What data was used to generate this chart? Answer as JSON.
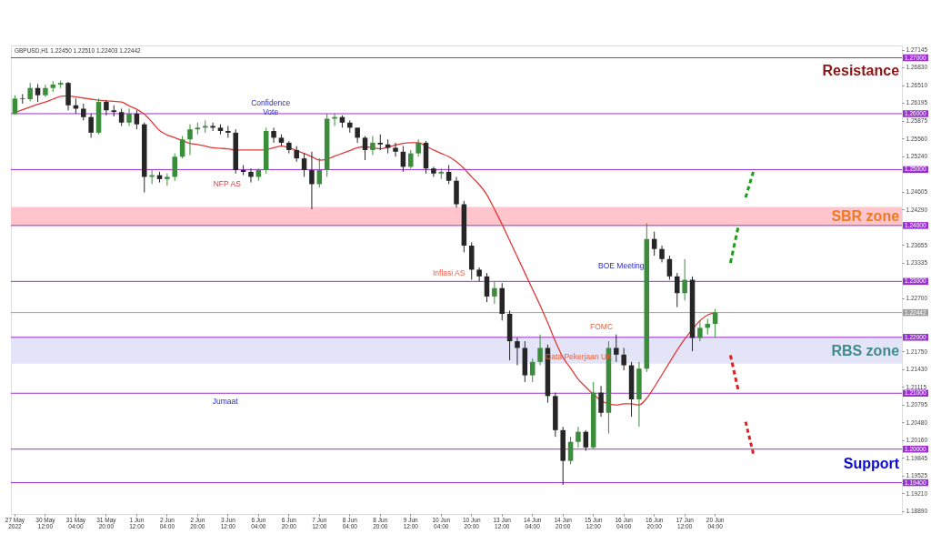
{
  "chart_data": {
    "type": "candlestick",
    "categories": [
      "27 May 2022",
      null,
      null,
      null,
      "30 May 12:00",
      null,
      null,
      null,
      "31 May 04:00",
      null,
      null,
      null,
      "31 May 20:00",
      null,
      null,
      null,
      "1 Jun 12:00",
      null,
      null,
      null,
      "2 Jun 04:00",
      null,
      null,
      null,
      "2 Jun 20:00",
      null,
      null,
      null,
      "3 Jun 12:00",
      null,
      null,
      null,
      "6 Jun 04:00",
      null,
      null,
      null,
      "6 Jun 20:00",
      null,
      null,
      null,
      "7 Jun 12:00",
      null,
      null,
      null,
      "8 Jun 04:00",
      null,
      null,
      null,
      "8 Jun 20:00",
      null,
      null,
      null,
      "9 Jun 12:00",
      null,
      null,
      null,
      "10 Jun 04:00",
      null,
      null,
      null,
      "10 Jun 20:00",
      null,
      null,
      null,
      "13 Jun 12:00",
      null,
      null,
      null,
      "14 Jun 04:00",
      null,
      null,
      null,
      "14 Jun 20:00",
      null,
      null,
      null,
      "15 Jun 12:00",
      null,
      null,
      null,
      "16 Jun 04:00",
      null,
      null,
      null,
      "16 Jun 20:00",
      null,
      null,
      null,
      "17 Jun 12:00",
      null,
      null,
      null,
      "20 Jun 04:00",
      null,
      null,
      null,
      null,
      null,
      null,
      null,
      null,
      null,
      null,
      null,
      null,
      null,
      null,
      null,
      null,
      null,
      null,
      null,
      null,
      null,
      null,
      null,
      null
    ],
    "ohlc": [
      [
        1.26,
        1.2633,
        1.2598,
        1.2627
      ],
      [
        1.2627,
        1.2635,
        1.2618,
        1.2626
      ],
      [
        1.2626,
        1.2655,
        1.2622,
        1.2646
      ],
      [
        1.2646,
        1.2653,
        1.2621,
        1.2633
      ],
      [
        1.2633,
        1.2652,
        1.263,
        1.2646
      ],
      [
        1.2646,
        1.2658,
        1.2639,
        1.2652
      ],
      [
        1.2652,
        1.2659,
        1.2646,
        1.2655
      ],
      [
        1.2655,
        1.2657,
        1.2606,
        1.2615
      ],
      [
        1.2615,
        1.2627,
        1.26,
        1.2609
      ],
      [
        1.2609,
        1.2618,
        1.2588,
        1.2594
      ],
      [
        1.2594,
        1.26,
        1.2557,
        1.2566
      ],
      [
        1.2566,
        1.2627,
        1.2563,
        1.2621
      ],
      [
        1.2621,
        1.2624,
        1.2597,
        1.2606
      ],
      [
        1.2606,
        1.2615,
        1.2595,
        1.2603
      ],
      [
        1.2603,
        1.2609,
        1.2578,
        1.2584
      ],
      [
        1.2584,
        1.2609,
        1.2578,
        1.26
      ],
      [
        1.26,
        1.2606,
        1.2572,
        1.2581
      ],
      [
        1.2581,
        1.2584,
        1.2459,
        1.2487
      ],
      [
        1.2487,
        1.2499,
        1.2474,
        1.249
      ],
      [
        1.249,
        1.2496,
        1.2477,
        1.2483
      ],
      [
        1.2483,
        1.2493,
        1.2471,
        1.2487
      ],
      [
        1.2487,
        1.2529,
        1.248,
        1.2523
      ],
      [
        1.2523,
        1.256,
        1.252,
        1.2554
      ],
      [
        1.2554,
        1.2581,
        1.2526,
        1.2572
      ],
      [
        1.2572,
        1.2584,
        1.2563,
        1.2575
      ],
      [
        1.2575,
        1.2588,
        1.2566,
        1.2578
      ],
      [
        1.2578,
        1.2584,
        1.2569,
        1.2575
      ],
      [
        1.2575,
        1.2581,
        1.2563,
        1.2569
      ],
      [
        1.2569,
        1.2578,
        1.2557,
        1.2566
      ],
      [
        1.2566,
        1.2572,
        1.2493,
        1.2499
      ],
      [
        1.2499,
        1.2508,
        1.249,
        1.2496
      ],
      [
        1.2496,
        1.2502,
        1.2477,
        1.2487
      ],
      [
        1.2487,
        1.2502,
        1.248,
        1.2499
      ],
      [
        1.2499,
        1.2575,
        1.2493,
        1.2569
      ],
      [
        1.2569,
        1.2575,
        1.2548,
        1.2557
      ],
      [
        1.2557,
        1.2563,
        1.2542,
        1.2548
      ],
      [
        1.2548,
        1.2551,
        1.2529,
        1.2535
      ],
      [
        1.2535,
        1.2542,
        1.2514,
        1.252
      ],
      [
        1.252,
        1.2529,
        1.2487,
        1.2499
      ],
      [
        1.2499,
        1.2532,
        1.2429,
        1.2474
      ],
      [
        1.2474,
        1.252,
        1.2468,
        1.2499
      ],
      [
        1.2499,
        1.26,
        1.2487,
        1.2591
      ],
      [
        1.2591,
        1.26,
        1.2578,
        1.2594
      ],
      [
        1.2594,
        1.2597,
        1.2575,
        1.2584
      ],
      [
        1.2584,
        1.2588,
        1.2566,
        1.2575
      ],
      [
        1.2575,
        1.2575,
        1.2548,
        1.2557
      ],
      [
        1.2557,
        1.256,
        1.2517,
        1.2535
      ],
      [
        1.2535,
        1.256,
        1.2526,
        1.2548
      ],
      [
        1.2548,
        1.2563,
        1.2535,
        1.2545
      ],
      [
        1.2545,
        1.2554,
        1.2529,
        1.2539
      ],
      [
        1.2539,
        1.2548,
        1.2523,
        1.2532
      ],
      [
        1.2532,
        1.2542,
        1.2496,
        1.2505
      ],
      [
        1.2505,
        1.2535,
        1.2502,
        1.2529
      ],
      [
        1.2529,
        1.2554,
        1.2523,
        1.2548
      ],
      [
        1.2548,
        1.2551,
        1.2493,
        1.2502
      ],
      [
        1.2502,
        1.2505,
        1.2487,
        1.2493
      ],
      [
        1.2493,
        1.2502,
        1.2483,
        1.2496
      ],
      [
        1.2496,
        1.2508,
        1.2474,
        1.248
      ],
      [
        1.248,
        1.2487,
        1.2432,
        1.2438
      ],
      [
        1.2438,
        1.2444,
        1.2352,
        1.2364
      ],
      [
        1.2364,
        1.237,
        1.2303,
        1.2321
      ],
      [
        1.2321,
        1.2325,
        1.23,
        1.2309
      ],
      [
        1.2309,
        1.2315,
        1.2263,
        1.2273
      ],
      [
        1.2273,
        1.23,
        1.226,
        1.2288
      ],
      [
        1.2288,
        1.2297,
        1.223,
        1.2242
      ],
      [
        1.2242,
        1.2248,
        1.2159,
        1.2193
      ],
      [
        1.2193,
        1.2199,
        1.215,
        1.2181
      ],
      [
        1.2181,
        1.2193,
        1.212,
        1.2132
      ],
      [
        1.2132,
        1.2162,
        1.212,
        1.2156
      ],
      [
        1.2156,
        1.2205,
        1.215,
        1.2181
      ],
      [
        1.2181,
        1.2187,
        1.2083,
        1.2095
      ],
      [
        1.2095,
        1.2101,
        1.2022,
        1.2034
      ],
      [
        1.2034,
        1.204,
        1.1936,
        1.1979
      ],
      [
        1.1979,
        1.2022,
        1.1973,
        1.2013
      ],
      [
        1.2013,
        1.204,
        1.2003,
        1.2031
      ],
      [
        1.2031,
        1.2034,
        1.1997,
        1.2003
      ],
      [
        1.2003,
        1.212,
        1.2,
        1.2101
      ],
      [
        1.2101,
        1.2113,
        1.2058,
        1.2065
      ],
      [
        1.2065,
        1.2193,
        1.2028,
        1.2181
      ],
      [
        1.2181,
        1.2205,
        1.2156,
        1.2169
      ],
      [
        1.2169,
        1.2181,
        1.2141,
        1.215
      ],
      [
        1.215,
        1.2156,
        1.2058,
        1.2089
      ],
      [
        1.2089,
        1.2156,
        1.204,
        1.2144
      ],
      [
        1.2144,
        1.2404,
        1.2138,
        1.2376
      ],
      [
        1.2376,
        1.2389,
        1.2346,
        1.2358
      ],
      [
        1.2358,
        1.2364,
        1.2334,
        1.234
      ],
      [
        1.234,
        1.2346,
        1.2303,
        1.2309
      ],
      [
        1.2309,
        1.2315,
        1.2254,
        1.2279
      ],
      [
        1.2279,
        1.234,
        1.2266,
        1.2303
      ],
      [
        1.2303,
        1.2309,
        1.2175,
        1.2199
      ],
      [
        1.2199,
        1.223,
        1.2193,
        1.2217
      ],
      [
        1.2217,
        1.2233,
        1.2205,
        1.2224
      ],
      [
        1.2224,
        1.2251,
        1.2199,
        1.22442
      ],
      null,
      null,
      null,
      null,
      null,
      null,
      null,
      null,
      null,
      null,
      null,
      null,
      null,
      null,
      null,
      null,
      null,
      null,
      null,
      null,
      null,
      null,
      null,
      null
    ],
    "colors": [
      "#3b8c3b",
      "#262626",
      "#3b8c3b",
      "#262626",
      "#3b8c3b",
      "#3b8c3b",
      "#3b8c3b",
      "#262626",
      "#262626",
      "#262626",
      "#262626",
      "#3b8c3b",
      "#262626",
      "#262626",
      "#262626",
      "#3b8c3b",
      "#262626",
      "#262626",
      "#3b8c3b",
      "#262626",
      "#3b8c3b",
      "#3b8c3b",
      "#3b8c3b",
      "#3b8c3b",
      "#3b8c3b",
      "#3b8c3b",
      "#262626",
      "#262626",
      "#262626",
      "#262626",
      "#262626",
      "#262626",
      "#3b8c3b",
      "#3b8c3b",
      "#262626",
      "#262626",
      "#262626",
      "#262626",
      "#262626",
      "#262626",
      "#3b8c3b",
      "#3b8c3b",
      "#3b8c3b",
      "#262626",
      "#262626",
      "#262626",
      "#262626",
      "#3b8c3b",
      "#262626",
      "#262626",
      "#262626",
      "#262626",
      "#3b8c3b",
      "#3b8c3b",
      "#262626",
      "#262626",
      "#3b8c3b",
      "#262626",
      "#262626",
      "#262626",
      "#262626",
      "#262626",
      "#262626",
      "#3b8c3b",
      "#262626",
      "#262626",
      "#262626",
      "#262626",
      "#3b8c3b",
      "#3b8c3b",
      "#262626",
      "#262626",
      "#262626",
      "#3b8c3b",
      "#3b8c3b",
      "#262626",
      "#3b8c3b",
      "#262626",
      "#3b8c3b",
      "#262626",
      "#262626",
      "#262626",
      "#3b8c3b",
      "#3b8c3b",
      "#262626",
      "#262626",
      "#262626",
      "#262626",
      "#3b8c3b",
      "#262626",
      "#3b8c3b",
      "#3b8c3b",
      "#3b8c3b",
      null,
      null,
      null,
      null,
      null,
      null,
      null,
      null,
      null,
      null,
      null,
      null,
      null,
      null,
      null,
      null,
      null,
      null,
      null,
      null,
      null,
      null,
      null,
      null
    ],
    "series": [
      {
        "type": "line",
        "color": "#e03a3a",
        "line_style": "solid",
        "values": [
          1.2602,
          1.2607,
          1.2612,
          1.2617,
          1.2621,
          1.2626,
          1.2631,
          1.2632,
          1.263,
          1.2628,
          1.2626,
          1.2624,
          1.2623,
          1.2622,
          1.2621,
          1.2614,
          1.2608,
          1.2599,
          1.2585,
          1.257,
          1.2562,
          1.2557,
          1.2552,
          1.2547,
          1.2545,
          1.2542,
          1.2539,
          1.2538,
          1.2537,
          1.2535,
          1.2535,
          1.2535,
          1.2535,
          1.2536,
          1.2539,
          1.2542,
          1.2539,
          1.2534,
          1.2529,
          1.2523,
          1.2517,
          1.2519,
          1.2524,
          1.2529,
          1.2534,
          1.2539,
          1.2541,
          1.2539,
          1.2537,
          1.254,
          1.2544,
          1.2547,
          1.2548,
          1.2548,
          1.2542,
          1.2535,
          1.2529,
          1.2523,
          1.2514,
          1.2502,
          1.2487,
          1.2473,
          1.2455,
          1.2429,
          1.2402,
          1.2373,
          1.2344,
          1.2315,
          1.2286,
          1.2257,
          1.2226,
          1.2193,
          1.2164,
          1.2145,
          1.2125,
          1.2111,
          1.2098,
          1.2087,
          1.2081,
          1.2079,
          1.2081,
          1.2081,
          1.2079,
          1.2091,
          1.2111,
          1.2133,
          1.2155,
          1.2177,
          1.2197,
          1.2214,
          1.223,
          1.224,
          1.2244,
          null,
          null,
          null,
          null,
          null,
          null,
          null,
          null,
          null,
          null,
          null,
          null,
          null,
          null,
          null,
          null,
          null,
          null,
          null,
          null,
          null,
          null,
          null,
          null
        ]
      },
      {
        "type": "line",
        "color": "#1e9c1e",
        "line_style": "dashed",
        "values": [
          null,
          null,
          null,
          null,
          null,
          null,
          null,
          null,
          null,
          null,
          null,
          null,
          null,
          null,
          null,
          null,
          null,
          null,
          null,
          null,
          null,
          null,
          null,
          null,
          null,
          null,
          null,
          null,
          null,
          null,
          null,
          null,
          null,
          null,
          null,
          null,
          null,
          null,
          null,
          null,
          null,
          null,
          null,
          null,
          null,
          null,
          null,
          null,
          null,
          null,
          null,
          null,
          null,
          null,
          null,
          null,
          null,
          null,
          null,
          null,
          null,
          null,
          null,
          null,
          null,
          null,
          null,
          null,
          null,
          null,
          null,
          null,
          null,
          null,
          null,
          null,
          null,
          null,
          null,
          null,
          null,
          null,
          null,
          null,
          null,
          null,
          null,
          null,
          null,
          null,
          null,
          null,
          null,
          null,
          1.2333,
          1.2396,
          null,
          null,
          null,
          null,
          null,
          null,
          null,
          null,
          null,
          null,
          null,
          null,
          null,
          null,
          null,
          null,
          null,
          null,
          null,
          null,
          null
        ]
      },
      {
        "type": "line",
        "color": "#1e9c1e",
        "line_style": "dashed",
        "values": [
          null,
          null,
          null,
          null,
          null,
          null,
          null,
          null,
          null,
          null,
          null,
          null,
          null,
          null,
          null,
          null,
          null,
          null,
          null,
          null,
          null,
          null,
          null,
          null,
          null,
          null,
          null,
          null,
          null,
          null,
          null,
          null,
          null,
          null,
          null,
          null,
          null,
          null,
          null,
          null,
          null,
          null,
          null,
          null,
          null,
          null,
          null,
          null,
          null,
          null,
          null,
          null,
          null,
          null,
          null,
          null,
          null,
          null,
          null,
          null,
          null,
          null,
          null,
          null,
          null,
          null,
          null,
          null,
          null,
          null,
          null,
          null,
          null,
          null,
          null,
          null,
          null,
          null,
          null,
          null,
          null,
          null,
          null,
          null,
          null,
          null,
          null,
          null,
          null,
          null,
          null,
          null,
          null,
          null,
          null,
          null,
          1.245,
          1.2496,
          null,
          null,
          null,
          null,
          null,
          null,
          null,
          null,
          null,
          null,
          null,
          null,
          null,
          null,
          null,
          null,
          null,
          null,
          null
        ]
      },
      {
        "type": "line",
        "color": "#e02020",
        "line_style": "dashed",
        "values": [
          null,
          null,
          null,
          null,
          null,
          null,
          null,
          null,
          null,
          null,
          null,
          null,
          null,
          null,
          null,
          null,
          null,
          null,
          null,
          null,
          null,
          null,
          null,
          null,
          null,
          null,
          null,
          null,
          null,
          null,
          null,
          null,
          null,
          null,
          null,
          null,
          null,
          null,
          null,
          null,
          null,
          null,
          null,
          null,
          null,
          null,
          null,
          null,
          null,
          null,
          null,
          null,
          null,
          null,
          null,
          null,
          null,
          null,
          null,
          null,
          null,
          null,
          null,
          null,
          null,
          null,
          null,
          null,
          null,
          null,
          null,
          null,
          null,
          null,
          null,
          null,
          null,
          null,
          null,
          null,
          null,
          null,
          null,
          null,
          null,
          null,
          null,
          null,
          null,
          null,
          null,
          null,
          null,
          null,
          1.2168,
          1.2107,
          null,
          null,
          null,
          null,
          null,
          null,
          null,
          null,
          null,
          null,
          null,
          null,
          null,
          null,
          null,
          null,
          null,
          null,
          null,
          null,
          null
        ]
      },
      {
        "type": "line",
        "color": "#e02020",
        "line_style": "dashed",
        "values": [
          null,
          null,
          null,
          null,
          null,
          null,
          null,
          null,
          null,
          null,
          null,
          null,
          null,
          null,
          null,
          null,
          null,
          null,
          null,
          null,
          null,
          null,
          null,
          null,
          null,
          null,
          null,
          null,
          null,
          null,
          null,
          null,
          null,
          null,
          null,
          null,
          null,
          null,
          null,
          null,
          null,
          null,
          null,
          null,
          null,
          null,
          null,
          null,
          null,
          null,
          null,
          null,
          null,
          null,
          null,
          null,
          null,
          null,
          null,
          null,
          null,
          null,
          null,
          null,
          null,
          null,
          null,
          null,
          null,
          null,
          null,
          null,
          null,
          null,
          null,
          null,
          null,
          null,
          null,
          null,
          null,
          null,
          null,
          null,
          null,
          null,
          null,
          null,
          null,
          null,
          null,
          null,
          null,
          null,
          null,
          null,
          1.2049,
          1.1992,
          null,
          null,
          null,
          null,
          null,
          null,
          null,
          null,
          null,
          null,
          null,
          null,
          null,
          null,
          null,
          null,
          null,
          null,
          null
        ]
      }
    ],
    "ylim": [
      1.1884,
      1.2722
    ],
    "yticks": [
      1.27145,
      {
        "value": 1.2683,
        "label": "1.26830"
      },
      {
        "value": 1.2651,
        "label": "1.26510"
      },
      1.26195,
      1.25875,
      {
        "value": 1.2556,
        "label": "1.25560"
      },
      {
        "value": 1.2524,
        "label": "1.25240"
      },
      1.24605,
      {
        "value": 1.2429,
        "label": "1.24290"
      },
      1.23655,
      1.23335,
      {
        "value": 1.227,
        "label": "1.22700"
      },
      {
        "value": 1.2175,
        "label": "1.21750"
      },
      {
        "value": 1.2143,
        "label": "1.21430"
      },
      1.21115,
      1.20795,
      {
        "value": 1.2048,
        "label": "1.20480"
      },
      {
        "value": 1.2016,
        "label": "1.20160"
      },
      1.19845,
      1.19525,
      {
        "value": 1.1921,
        "label": "1.19210"
      },
      {
        "value": 1.1889,
        "label": "1.18890"
      }
    ],
    "ref_lines": [
      {
        "axis": "y",
        "value": 1.27,
        "label": "1.27000",
        "color": "#9b30d0"
      },
      {
        "axis": "y",
        "value": 1.26,
        "label": "1.26000",
        "color": "#9b30d0"
      },
      {
        "axis": "y",
        "value": 1.25,
        "label": "1.25000",
        "color": "#9b30d0"
      },
      {
        "axis": "y",
        "value": 1.24,
        "label": "1.24000",
        "color": "#9b30d0"
      },
      {
        "axis": "y",
        "value": 1.23,
        "label": "1.23000",
        "color": "#9b30d0"
      },
      {
        "axis": "y",
        "value": 1.22,
        "label": "1.22000",
        "color": "#9b30d0"
      },
      {
        "axis": "y",
        "value": 1.21,
        "label": "1.21000",
        "color": "#9b30d0"
      },
      {
        "axis": "y",
        "value": 1.2,
        "label": "1.20000",
        "color": "#9b30d0"
      },
      {
        "axis": "y",
        "value": 1.194,
        "label": "1.19400",
        "color": "#9b30d0"
      },
      {
        "axis": "y",
        "value": 1.22442,
        "label": "1.22442",
        "color": "#a0a0a0"
      }
    ],
    "bands": [
      {
        "axis": "y",
        "from": 1.24,
        "to": 1.2433,
        "color": "#ffc4cc"
      },
      {
        "axis": "y",
        "from": 1.2153,
        "to": 1.22,
        "color": "#e4e4f8"
      }
    ],
    "annotations": [
      "GBPUSD,H1 1.22450 1.22510 1.22403 1.22442",
      "Confidence\nVote",
      "NFP AS",
      "Jumaat",
      "Inflasi AS",
      "BOE Meeting",
      "FOMC",
      "Data Pekerjaan UK",
      "Resistance",
      "SBR zone",
      "RBS zone",
      "Support"
    ]
  }
}
